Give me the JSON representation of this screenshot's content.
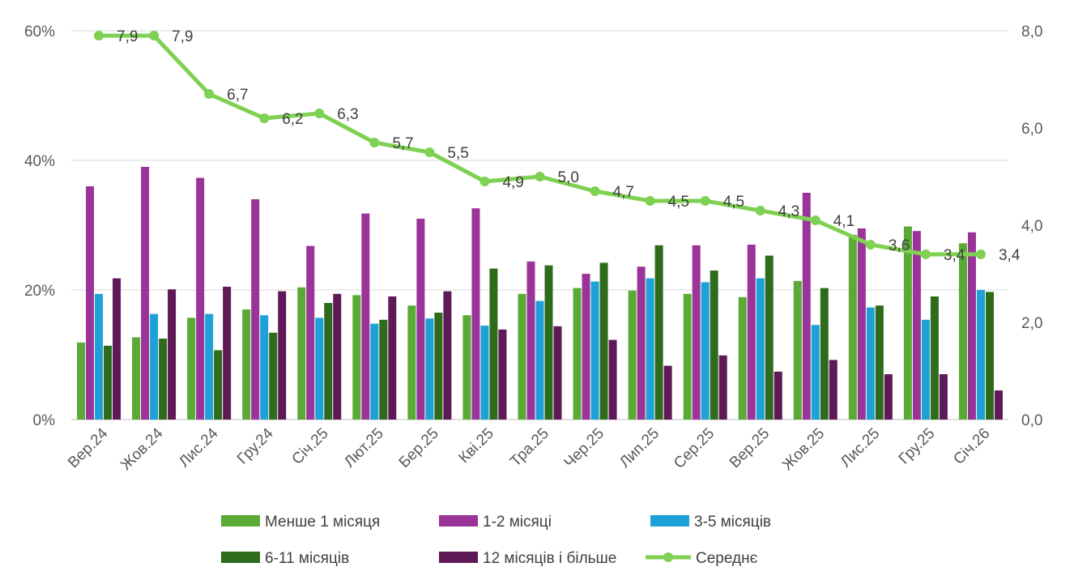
{
  "chart_data": {
    "type": "bar",
    "categories": [
      "Вер.24",
      "Жов.24",
      "Лис.24",
      "Гру.24",
      "Січ.25",
      "Лют.25",
      "Бер.25",
      "Кві.25",
      "Тра.25",
      "Чер.25",
      "Лип.25",
      "Сер.25",
      "Вер.25",
      "Жов.25",
      "Лис.25",
      "Гру.25",
      "Січ.26"
    ],
    "y_left": {
      "ticks": [
        "0%",
        "20%",
        "40%",
        "60%"
      ],
      "min": 0,
      "max": 60
    },
    "y_right": {
      "ticks": [
        "0,0",
        "2,0",
        "4,0",
        "6,0",
        "8,0"
      ],
      "min": 0,
      "max": 8
    },
    "grid": true,
    "legend_position": "bottom",
    "series": [
      {
        "name": "Менше 1 місяця",
        "type": "bar",
        "axis": "left",
        "color": "#5aaa35",
        "values": [
          11.9,
          12.7,
          15.7,
          17.0,
          20.4,
          19.2,
          17.6,
          16.1,
          19.4,
          20.3,
          19.9,
          19.4,
          18.9,
          21.4,
          28.5,
          29.8,
          27.2
        ]
      },
      {
        "name": "1-2 місяці",
        "type": "bar",
        "axis": "left",
        "color": "#9b3499",
        "values": [
          36.0,
          39.0,
          37.3,
          34.0,
          26.8,
          31.8,
          31.0,
          32.6,
          24.4,
          22.5,
          23.6,
          26.9,
          27.0,
          35.0,
          29.5,
          29.1,
          28.9
        ]
      },
      {
        "name": "3-5 місяців",
        "type": "bar",
        "axis": "left",
        "color": "#1ea1d6",
        "values": [
          19.4,
          16.3,
          16.3,
          16.1,
          15.7,
          14.8,
          15.6,
          14.5,
          18.3,
          21.3,
          21.8,
          21.2,
          21.8,
          14.6,
          17.3,
          15.4,
          20.0
        ]
      },
      {
        "name": "6-11 місяців",
        "type": "bar",
        "axis": "left",
        "color": "#2e6b1d",
        "values": [
          11.4,
          12.5,
          10.7,
          13.4,
          18.0,
          15.4,
          16.5,
          23.3,
          23.8,
          24.2,
          26.9,
          23.0,
          25.3,
          20.3,
          17.6,
          19.0,
          19.7
        ]
      },
      {
        "name": "12 місяців і більше",
        "type": "bar",
        "axis": "left",
        "color": "#5e1a56",
        "values": [
          21.8,
          20.1,
          20.5,
          19.8,
          19.4,
          19.0,
          19.8,
          13.9,
          14.4,
          12.3,
          8.3,
          9.9,
          7.4,
          9.2,
          7.0,
          7.0,
          4.5
        ]
      },
      {
        "name": "Середнє",
        "type": "line",
        "axis": "right",
        "color": "#7ed152",
        "values": [
          7.9,
          7.9,
          6.7,
          6.2,
          6.3,
          5.7,
          5.5,
          4.9,
          5.0,
          4.7,
          4.5,
          4.5,
          4.3,
          4.1,
          3.6,
          3.4,
          3.4
        ],
        "labels": [
          "7,9",
          "7,9",
          "6,7",
          "6,2",
          "6,3",
          "5,7",
          "5,5",
          "4,9",
          "5,0",
          "4,7",
          "4,5",
          "4,5",
          "4,3",
          "4,1",
          "3,6",
          "3,4",
          "3,4"
        ]
      }
    ]
  }
}
